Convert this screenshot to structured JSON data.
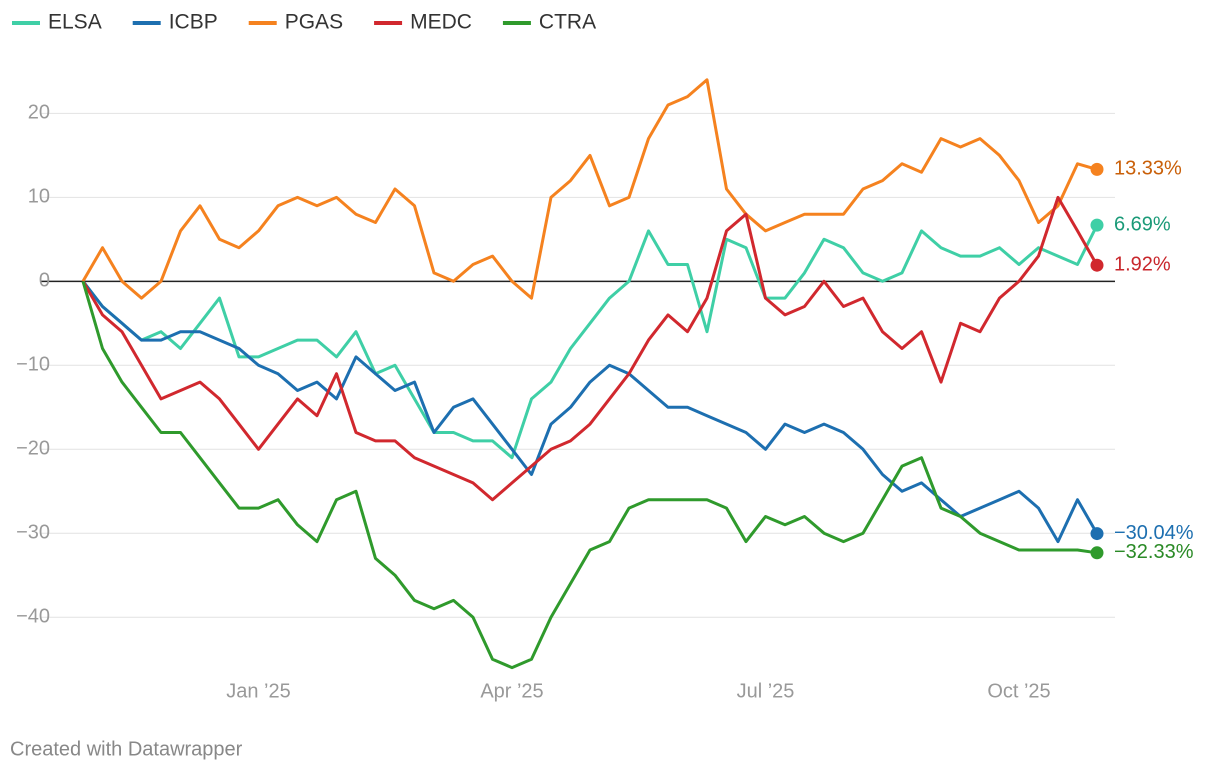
{
  "chart_data": {
    "type": "line",
    "footer": "Created with Datawrapper",
    "x": [
      null,
      null,
      null,
      null,
      null,
      null,
      null,
      null,
      null,
      "Jan ’25",
      null,
      null,
      null,
      null,
      null,
      null,
      null,
      null,
      null,
      null,
      null,
      null,
      "Apr ’25",
      null,
      null,
      null,
      null,
      null,
      null,
      null,
      null,
      null,
      null,
      null,
      null,
      "Jul ’25",
      null,
      null,
      null,
      null,
      null,
      null,
      null,
      null,
      null,
      null,
      null,
      null,
      "Oct ’25",
      null,
      null,
      null,
      null
    ],
    "ylim": [
      -47,
      26
    ],
    "yticks": [
      {
        "value": -40,
        "label": "−40"
      },
      {
        "value": -30,
        "label": "−30"
      },
      {
        "value": -20,
        "label": "−20"
      },
      {
        "value": -10,
        "label": "−10"
      },
      0,
      10,
      20
    ],
    "grid": true,
    "legend": "top-left",
    "series": [
      {
        "name": "ELSA",
        "color": "#3fcfa6",
        "label_color": "#1a9a78",
        "values": [
          0,
          -3,
          -5,
          -7,
          -6,
          -8,
          -5,
          -2,
          -9,
          -9,
          -8,
          -7,
          -7,
          -9,
          -6,
          -11,
          -10,
          -14,
          -18,
          -18,
          -19,
          -19,
          -21,
          -14,
          -12,
          -8,
          -5,
          -2,
          0,
          6,
          2,
          2,
          -6,
          5,
          4,
          -2,
          -2,
          1,
          5,
          4,
          1,
          0,
          1,
          6,
          4,
          3,
          3,
          4,
          2,
          4,
          3,
          2,
          6.69
        ],
        "value_labels": [
          null,
          null,
          null,
          null,
          null,
          null,
          null,
          null,
          null,
          null,
          null,
          null,
          null,
          null,
          null,
          null,
          null,
          null,
          null,
          null,
          null,
          null,
          null,
          null,
          null,
          null,
          null,
          null,
          null,
          null,
          null,
          null,
          null,
          null,
          null,
          null,
          null,
          null,
          null,
          null,
          null,
          null,
          null,
          null,
          null,
          null,
          null,
          null,
          null,
          null,
          null,
          null,
          "6.69%"
        ]
      },
      {
        "name": "ICBP",
        "color": "#1d6fb0",
        "label_color": "#1d6fb0",
        "values": [
          0,
          -3,
          -5,
          -7,
          -7,
          -6,
          -6,
          -7,
          -8,
          -10,
          -11,
          -13,
          -12,
          -14,
          -9,
          -11,
          -13,
          -12,
          -18,
          -15,
          -14,
          -17,
          -20,
          -23,
          -17,
          -15,
          -12,
          -10,
          -11,
          -13,
          -15,
          -15,
          -16,
          -17,
          -18,
          -20,
          -17,
          -18,
          -17,
          -18,
          -20,
          -23,
          -25,
          -24,
          -26,
          -28,
          -27,
          -26,
          -25,
          -27,
          -31,
          -26,
          -30.04
        ],
        "value_labels": [
          null,
          null,
          null,
          null,
          null,
          null,
          null,
          null,
          null,
          null,
          null,
          null,
          null,
          null,
          null,
          null,
          null,
          null,
          null,
          null,
          null,
          null,
          null,
          null,
          null,
          null,
          null,
          null,
          null,
          null,
          null,
          null,
          null,
          null,
          null,
          null,
          null,
          null,
          null,
          null,
          null,
          null,
          null,
          null,
          null,
          null,
          null,
          null,
          null,
          null,
          null,
          null,
          "−30.04%"
        ]
      },
      {
        "name": "PGAS",
        "color": "#f5821f",
        "label_color": "#c95f08",
        "values": [
          0,
          4,
          0,
          -2,
          0,
          6,
          9,
          5,
          4,
          6,
          9,
          10,
          9,
          10,
          8,
          7,
          11,
          9,
          1,
          0,
          2,
          3,
          0,
          -2,
          10,
          12,
          15,
          9,
          10,
          17,
          21,
          22,
          24,
          11,
          8,
          6,
          7,
          8,
          8,
          8,
          11,
          12,
          14,
          13,
          17,
          16,
          17,
          15,
          12,
          7,
          9,
          14,
          13.33
        ],
        "value_labels": [
          null,
          null,
          null,
          null,
          null,
          null,
          null,
          null,
          null,
          null,
          null,
          null,
          null,
          null,
          null,
          null,
          null,
          null,
          null,
          null,
          null,
          null,
          null,
          null,
          null,
          null,
          null,
          null,
          null,
          null,
          null,
          null,
          null,
          null,
          null,
          null,
          null,
          null,
          null,
          null,
          null,
          null,
          null,
          null,
          null,
          null,
          null,
          null,
          null,
          null,
          null,
          null,
          "13.33%"
        ]
      },
      {
        "name": "MEDC",
        "color": "#d1282e",
        "label_color": "#c8262b",
        "values": [
          0,
          -4,
          -6,
          -10,
          -14,
          -13,
          -12,
          -14,
          -17,
          -20,
          -17,
          -14,
          -16,
          -11,
          -18,
          -19,
          -19,
          -21,
          -22,
          -23,
          -24,
          -26,
          -24,
          -22,
          -20,
          -19,
          -17,
          -14,
          -11,
          -7,
          -4,
          -6,
          -2,
          6,
          8,
          -2,
          -4,
          -3,
          0,
          -3,
          -2,
          -6,
          -8,
          -6,
          -12,
          -5,
          -6,
          -2,
          0,
          3,
          10,
          6,
          1.92
        ],
        "value_labels": [
          null,
          null,
          null,
          null,
          null,
          null,
          null,
          null,
          null,
          null,
          null,
          null,
          null,
          null,
          null,
          null,
          null,
          null,
          null,
          null,
          null,
          null,
          null,
          null,
          null,
          null,
          null,
          null,
          null,
          null,
          null,
          null,
          null,
          null,
          null,
          null,
          null,
          null,
          null,
          null,
          null,
          null,
          null,
          null,
          null,
          null,
          null,
          null,
          null,
          null,
          null,
          null,
          "1.92%"
        ]
      },
      {
        "name": "CTRA",
        "color": "#2f9a2c",
        "label_color": "#2a8a26",
        "values": [
          0,
          -8,
          -12,
          -15,
          -18,
          -18,
          -21,
          -24,
          -27,
          -27,
          -26,
          -29,
          -31,
          -26,
          -25,
          -33,
          -35,
          -38,
          -39,
          -38,
          -40,
          -45,
          -46,
          -45,
          -40,
          -36,
          -32,
          -31,
          -27,
          -26,
          -26,
          -26,
          -26,
          -27,
          -31,
          -28,
          -29,
          -28,
          -30,
          -31,
          -30,
          -26,
          -22,
          -21,
          -27,
          -28,
          -30,
          -31,
          -32,
          -32,
          -32,
          -32,
          -32.33
        ],
        "value_labels": [
          null,
          null,
          null,
          null,
          null,
          null,
          null,
          null,
          null,
          null,
          null,
          null,
          null,
          null,
          null,
          null,
          null,
          null,
          null,
          null,
          null,
          null,
          null,
          null,
          null,
          null,
          null,
          null,
          null,
          null,
          null,
          null,
          null,
          null,
          null,
          null,
          null,
          null,
          null,
          null,
          null,
          null,
          null,
          null,
          null,
          null,
          null,
          null,
          null,
          null,
          null,
          null,
          "−32.33%"
        ]
      }
    ]
  }
}
